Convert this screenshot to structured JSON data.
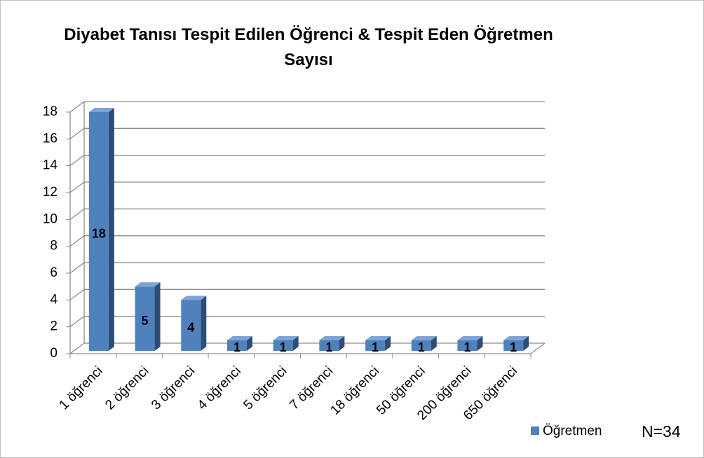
{
  "chart_data": {
    "type": "bar",
    "title": "Diyabet Tanısı Tespit Edilen Öğrenci & Tespit Eden Öğretmen Sayısı",
    "categories": [
      "1 öğrenci",
      "2 öğrenci",
      "3 öğrenci",
      "4 öğrenci",
      "5 öğrenci",
      "7 öğrenci",
      "18 öğrenci",
      "50 öğrenci",
      "200 öğrenci",
      "650 öğrenci"
    ],
    "series": [
      {
        "name": "Öğretmen",
        "color": "#4f81bd",
        "values": [
          18,
          5,
          4,
          1,
          1,
          1,
          1,
          1,
          1,
          1
        ]
      }
    ],
    "ylim": [
      0,
      18
    ],
    "yticks": [
      0,
      2,
      4,
      6,
      8,
      10,
      12,
      14,
      16,
      18
    ],
    "grid": true,
    "legend": "bottom-right",
    "annotation": "N=34"
  }
}
